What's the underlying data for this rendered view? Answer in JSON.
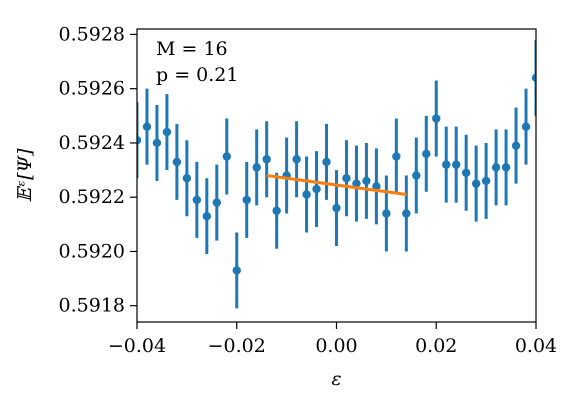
{
  "chart_data": {
    "type": "scatter",
    "xlabel": "ε",
    "ylabel": "𝔼ᵋ[Ψ]",
    "xlim": [
      -0.04,
      0.04
    ],
    "ylim": [
      0.59174,
      0.59282
    ],
    "x_ticks": [
      -0.04,
      -0.02,
      0.0,
      0.02,
      0.04
    ],
    "x_tick_labels": [
      "−0.04",
      "−0.02",
      "0.00",
      "0.02",
      "0.04"
    ],
    "y_ticks": [
      0.5918,
      0.592,
      0.5922,
      0.5924,
      0.5926,
      0.5928
    ],
    "y_tick_labels": [
      "0.5918",
      "0.5920",
      "0.5922",
      "0.5924",
      "0.5926",
      "0.5928"
    ],
    "grid": false,
    "annotations": [
      "M = 16",
      "p = 0.21"
    ],
    "colors": {
      "points": "#1f77b4",
      "fit": "#ff7f0e"
    },
    "series": [
      {
        "type": "errorbar",
        "x": [
          -0.04,
          -0.038,
          -0.036,
          -0.034,
          -0.032,
          -0.03,
          -0.028,
          -0.026,
          -0.024,
          -0.022,
          -0.02,
          -0.018,
          -0.016,
          -0.014,
          -0.012,
          -0.01,
          -0.008,
          -0.006,
          -0.004,
          -0.002,
          0.0,
          0.002,
          0.004,
          0.006,
          0.008,
          0.01,
          0.012,
          0.014,
          0.016,
          0.018,
          0.02,
          0.022,
          0.024,
          0.026,
          0.028,
          0.03,
          0.032,
          0.034,
          0.036,
          0.038,
          0.04
        ],
        "y": [
          0.59241,
          0.59246,
          0.5924,
          0.59244,
          0.59233,
          0.59227,
          0.59219,
          0.59213,
          0.59218,
          0.59235,
          0.59193,
          0.59219,
          0.59231,
          0.59234,
          0.59215,
          0.59228,
          0.59234,
          0.59221,
          0.59223,
          0.59233,
          0.59216,
          0.59227,
          0.59225,
          0.59226,
          0.59224,
          0.59214,
          0.59235,
          0.59214,
          0.59228,
          0.59236,
          0.59249,
          0.59232,
          0.59232,
          0.59229,
          0.59225,
          0.59226,
          0.59231,
          0.59231,
          0.59239,
          0.59246,
          0.59264
        ],
        "yerr": 0.00014
      },
      {
        "type": "line",
        "x": [
          -0.014,
          0.014
        ],
        "y": [
          0.59228,
          0.59221
        ]
      }
    ]
  }
}
